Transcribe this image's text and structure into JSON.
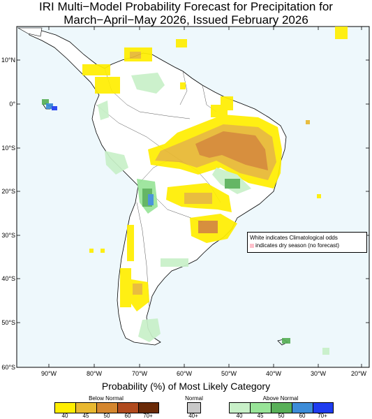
{
  "title": {
    "line1": "IRI Multi−Model Probability Forecast for Precipitation for",
    "line2": "March−April−May 2026, Issued February 2026"
  },
  "axes": {
    "lat_labels": [
      "10°N",
      "0°",
      "10°S",
      "20°S",
      "30°S",
      "40°S",
      "50°S",
      "60°S"
    ],
    "lon_labels": [
      "90°W",
      "80°W",
      "70°W",
      "60°W",
      "50°W",
      "40°W",
      "30°W",
      "20°W"
    ]
  },
  "notes": {
    "line1": "White indicates Climatological odds",
    "line2": "indicates dry season (no forecast)"
  },
  "legend": {
    "title": "Probability (%) of Most Likely Category",
    "below": {
      "label": "Below Normal",
      "ticks": [
        "40",
        "45",
        "50",
        "60",
        "70+"
      ],
      "colors": [
        "#ffee00",
        "#e8b830",
        "#d4862e",
        "#b04a1e",
        "#6a2a08"
      ]
    },
    "normal": {
      "label": "Normal",
      "ticks": [
        "40+"
      ],
      "colors": [
        "#c8c8c8"
      ]
    },
    "above": {
      "label": "Above Normal",
      "ticks": [
        "40",
        "45",
        "50",
        "60",
        "70+"
      ],
      "colors": [
        "#c8f0c8",
        "#98e498",
        "#58b058",
        "#3c8cd8",
        "#1e3cf0"
      ]
    }
  },
  "map_colors": {
    "ocean": "#eef8fc",
    "land": "#ffffff",
    "coast": "#000000",
    "border": "#555555"
  }
}
